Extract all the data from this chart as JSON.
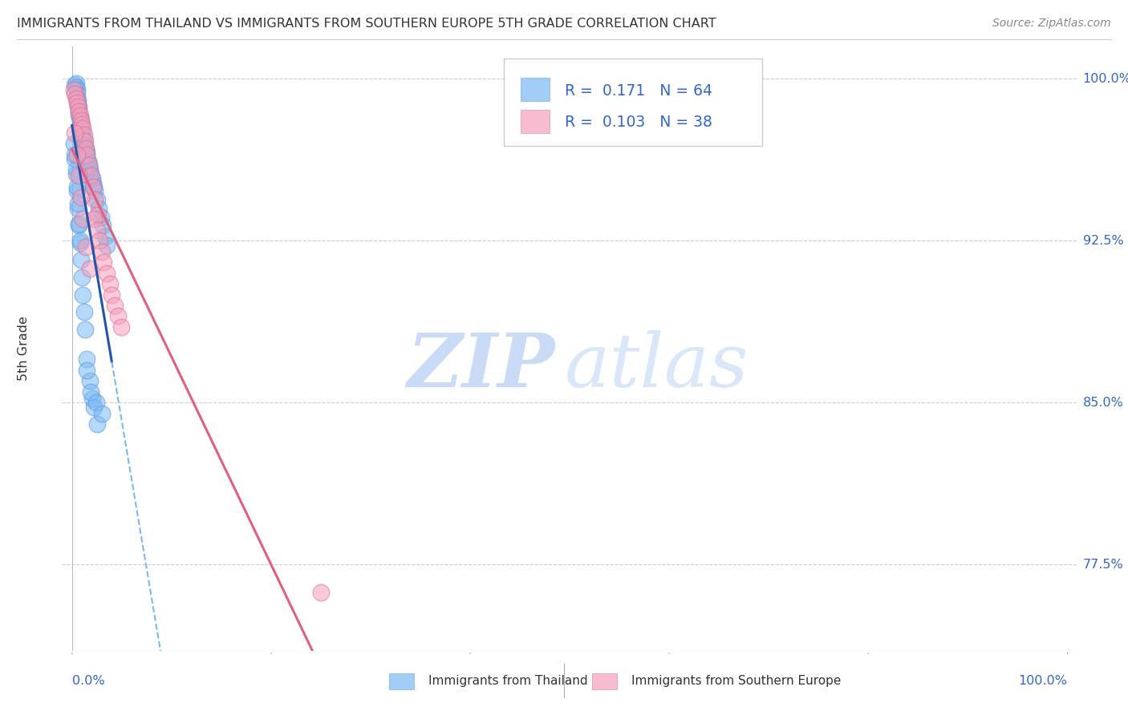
{
  "title": "IMMIGRANTS FROM THAILAND VS IMMIGRANTS FROM SOUTHERN EUROPE 5TH GRADE CORRELATION CHART",
  "source": "Source: ZipAtlas.com",
  "ylabel": "5th Grade",
  "ytick_vals": [
    77.5,
    85.0,
    92.5,
    100.0
  ],
  "ytick_labels": [
    "77.5%",
    "85.0%",
    "92.5%",
    "100.0%"
  ],
  "xtick_vals": [
    0,
    100
  ],
  "xtick_labels": [
    "0.0%",
    "100.0%"
  ],
  "xlim": [
    -1,
    101
  ],
  "ylim": [
    73.5,
    101.5
  ],
  "blue_color": "#7ab8f5",
  "blue_edge": "#5a9ae0",
  "pink_color": "#f4a0bc",
  "pink_edge": "#e07090",
  "trend_blue_solid": "#2255aa",
  "trend_blue_dash": "#7ab8f5",
  "trend_pink": "#e06080",
  "watermark_zip_color": "#c5d8f5",
  "watermark_atlas_color": "#d5e5f8",
  "legend_blue_r": "R =  0.171",
  "legend_blue_n": "N = 64",
  "legend_pink_r": "R =  0.103",
  "legend_pink_n": "N = 38",
  "thailand_x": [
    0.3,
    0.4,
    0.4,
    0.5,
    0.5,
    0.5,
    0.6,
    0.6,
    0.7,
    0.7,
    0.7,
    0.8,
    0.8,
    0.9,
    0.9,
    1.0,
    1.1,
    1.1,
    1.2,
    1.3,
    1.4,
    1.5,
    1.5,
    1.6,
    1.7,
    1.8,
    1.9,
    2.0,
    2.1,
    2.2,
    2.3,
    2.5,
    2.7,
    2.9,
    3.1,
    3.3,
    3.5,
    0.3,
    0.4,
    0.5,
    0.6,
    0.7,
    0.8,
    0.9,
    1.0,
    1.1,
    1.2,
    1.3,
    1.5,
    1.8,
    2.0,
    2.2,
    2.5,
    0.2,
    0.3,
    0.4,
    0.5,
    0.6,
    0.7,
    0.8,
    1.5,
    1.9,
    2.4,
    3.0
  ],
  "thailand_y": [
    99.7,
    99.8,
    99.6,
    99.5,
    99.3,
    99.1,
    99.0,
    98.8,
    98.7,
    98.5,
    98.3,
    98.2,
    98.0,
    97.9,
    97.7,
    97.6,
    97.4,
    97.2,
    97.1,
    96.9,
    96.7,
    96.6,
    96.4,
    96.2,
    96.0,
    95.8,
    95.6,
    95.4,
    95.2,
    95.0,
    94.8,
    94.4,
    94.0,
    93.6,
    93.2,
    92.7,
    92.3,
    96.3,
    95.6,
    94.8,
    94.0,
    93.2,
    92.4,
    91.6,
    90.8,
    90.0,
    89.2,
    88.4,
    87.0,
    86.0,
    85.2,
    84.8,
    84.0,
    97.0,
    96.5,
    95.8,
    95.0,
    94.2,
    93.3,
    92.5,
    86.5,
    85.5,
    85.0,
    84.5
  ],
  "s_europe_x": [
    0.2,
    0.3,
    0.4,
    0.5,
    0.6,
    0.7,
    0.8,
    0.9,
    1.0,
    1.1,
    1.2,
    1.3,
    1.4,
    1.5,
    1.7,
    1.9,
    2.1,
    2.3,
    2.6,
    0.3,
    0.5,
    0.7,
    0.9,
    1.1,
    1.4,
    1.8,
    2.2,
    2.5,
    2.8,
    3.0,
    3.2,
    3.5,
    3.8,
    4.0,
    4.3,
    4.6,
    4.9,
    25.0
  ],
  "s_europe_y": [
    99.5,
    99.3,
    99.1,
    98.9,
    98.7,
    98.5,
    98.3,
    98.1,
    97.9,
    97.7,
    97.4,
    97.1,
    96.8,
    96.5,
    96.0,
    95.5,
    95.0,
    94.4,
    93.7,
    97.5,
    96.5,
    95.5,
    94.5,
    93.5,
    92.2,
    91.2,
    93.5,
    93.0,
    92.5,
    92.0,
    91.5,
    91.0,
    90.5,
    90.0,
    89.5,
    89.0,
    88.5,
    76.2
  ]
}
